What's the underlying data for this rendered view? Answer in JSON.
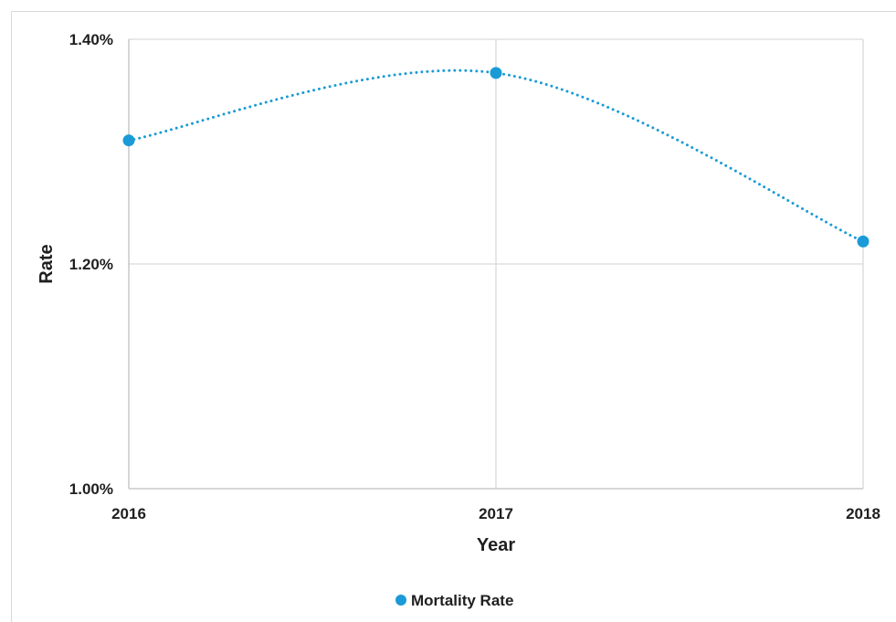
{
  "chart_data": {
    "type": "line",
    "title": "",
    "xlabel": "Year",
    "ylabel": "Rate",
    "categories": [
      "2016",
      "2017",
      "2018"
    ],
    "series": [
      {
        "name": "Mortality Rate",
        "values": [
          1.31,
          1.37,
          1.22
        ],
        "color": "#1a9bd7",
        "line_style": "dotted",
        "smoothed": true
      }
    ],
    "ylim": [
      1.0,
      1.4
    ],
    "yticks": [
      1.0,
      1.2,
      1.4
    ],
    "ytick_labels": [
      "1.00%",
      "1.20%",
      "1.40%"
    ],
    "y_unit": "percent",
    "grid": true,
    "grid_color": "#d9d9d9",
    "legend_position": "bottom"
  }
}
